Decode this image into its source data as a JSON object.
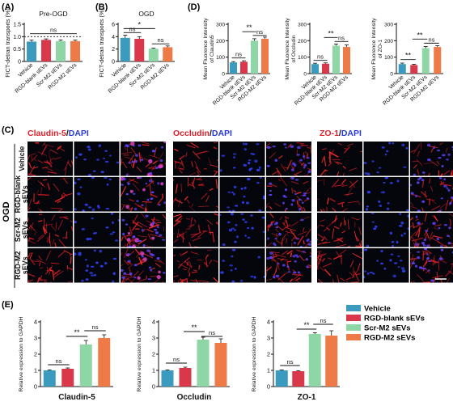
{
  "panel_labels": [
    "(A)",
    "(B)",
    "(C)",
    "(D)",
    "(E)"
  ],
  "groups": [
    "Vehicle",
    "RGD-blank sEVs",
    "Scr-M2 sEVs",
    "RGD-M2 sEVs"
  ],
  "colors": {
    "Vehicle": "#3a9bbf",
    "RGD-blank sEVs": "#d9384a",
    "Scr-M2 sEVs": "#8fd6a6",
    "RGD-M2 sEVs": "#ee7a48"
  },
  "sig": {
    "ns": "ns",
    "one": "*",
    "two": "**"
  },
  "microscopy": {
    "stains": [
      {
        "marker": "Claudin-5",
        "sep": "/",
        "dapi": "DAPI"
      },
      {
        "marker": "Occludin",
        "sep": "/",
        "dapi": "DAPI"
      },
      {
        "marker": "ZO-1",
        "sep": "/",
        "dapi": "DAPI"
      }
    ],
    "side_label": "OGD",
    "rows": [
      [
        "Vehicle"
      ],
      [
        "RGD-blank",
        "sEVs"
      ],
      [
        "Scr-M2",
        "sEVs"
      ],
      [
        "RGD-M2",
        "sEVs"
      ]
    ]
  },
  "chart_data": [
    {
      "id": "A",
      "type": "bar",
      "title": "Pre-OGD",
      "ylabel": "FICT-detran transports (%)",
      "ylim": [
        0,
        1.5
      ],
      "yticks": [
        0,
        0.5,
        1.0,
        1.5
      ],
      "tick_labels": [
        "0",
        "0.5",
        "1.0",
        "1.5"
      ],
      "categories": [
        "Vehicle",
        "RGD-blank sEVs",
        "Scr-M2 sEVs",
        "RGD-M2 sEVs"
      ],
      "values": [
        0.8,
        0.87,
        0.82,
        0.82
      ],
      "errors": [
        0.06,
        0.04,
        0.05,
        0.04
      ],
      "reference_line": 1.0,
      "annotations": [
        {
          "from": 0,
          "to": 3,
          "label": "ns",
          "y": 1.12
        }
      ]
    },
    {
      "id": "B",
      "type": "bar",
      "title": "OGD",
      "ylabel": "FICT-detran transports (%)",
      "ylim": [
        0,
        6
      ],
      "yticks": [
        0,
        2,
        4,
        6
      ],
      "tick_labels": [
        "0",
        "2",
        "4",
        "6"
      ],
      "categories": [
        "Vehicle",
        "RGD-blank sEVs",
        "Scr-M2 sEVs",
        "RGD-M2 sEVs"
      ],
      "values": [
        3.8,
        3.65,
        2.05,
        2.3
      ],
      "errors": [
        0.45,
        0.35,
        0.1,
        0.2
      ],
      "annotations": [
        {
          "from": 0,
          "to": 1,
          "label": "ns",
          "y": 4.65
        },
        {
          "from": 0,
          "to": 2,
          "label": "*",
          "y": 5.3
        },
        {
          "from": 2,
          "to": 3,
          "label": "ns",
          "y": 2.85
        }
      ]
    },
    {
      "id": "D1",
      "type": "bar",
      "title": "",
      "ylabel": "Mean Fluorence Intensity of Claudin5",
      "ylim": [
        0,
        300
      ],
      "yticks": [
        0,
        100,
        200,
        300
      ],
      "tick_labels": [
        "0",
        "100",
        "200",
        "300"
      ],
      "categories": [
        "Vehicle",
        "RGD-blank sEVs",
        "Scr-M2 sEVs",
        "RGD-M2 sEVs"
      ],
      "values": [
        68,
        72,
        200,
        212
      ],
      "errors": [
        5,
        6,
        12,
        10
      ],
      "annotations": [
        {
          "from": 0,
          "to": 1,
          "label": "ns",
          "y": 95
        },
        {
          "from": 1,
          "to": 2,
          "label": "**",
          "y": 255
        },
        {
          "from": 2,
          "to": 3,
          "label": "ns",
          "y": 232
        }
      ]
    },
    {
      "id": "D2",
      "type": "bar",
      "title": "",
      "ylabel": "Mean Fluorence Intensity of Occludin",
      "ylim": [
        0,
        300
      ],
      "yticks": [
        0,
        100,
        200,
        300
      ],
      "tick_labels": [
        "0",
        "100",
        "200",
        "300"
      ],
      "categories": [
        "Vehicle",
        "RGD-blank sEVs",
        "Scr-M2 sEVs",
        "RGD-M2 sEVs"
      ],
      "values": [
        58,
        60,
        170,
        162
      ],
      "errors": [
        5,
        5,
        10,
        12
      ],
      "annotations": [
        {
          "from": 0,
          "to": 1,
          "label": "ns",
          "y": 80
        },
        {
          "from": 1,
          "to": 2,
          "label": "**",
          "y": 220
        },
        {
          "from": 2,
          "to": 3,
          "label": "ns",
          "y": 195
        }
      ]
    },
    {
      "id": "D3",
      "type": "bar",
      "title": "",
      "ylabel": "Mean Fluorence Intensity of ZO-1",
      "ylim": [
        0,
        300
      ],
      "yticks": [
        0,
        100,
        200,
        300
      ],
      "tick_labels": [
        "0",
        "100",
        "200",
        "300"
      ],
      "categories": [
        "Vehicle",
        "RGD-blank sEVs",
        "Scr-M2 sEVs",
        "RGD-M2 sEVs"
      ],
      "values": [
        58,
        52,
        155,
        162
      ],
      "errors": [
        6,
        5,
        10,
        8
      ],
      "annotations": [
        {
          "from": 0,
          "to": 1,
          "label": "**",
          "y": 85
        },
        {
          "from": 1,
          "to": 2,
          "label": "**",
          "y": 210
        },
        {
          "from": 2,
          "to": 3,
          "label": "ns",
          "y": 185
        }
      ]
    },
    {
      "id": "E1",
      "type": "bar",
      "title": "",
      "ylabel": "Relative expression to GAPDH",
      "xlabel": "Claudin-5",
      "ylim": [
        0,
        4
      ],
      "yticks": [
        0,
        1,
        2,
        3,
        4
      ],
      "tick_labels": [
        "0",
        "1",
        "2",
        "3",
        "4"
      ],
      "categories": [
        "Vehicle",
        "RGD-blank sEVs",
        "Scr-M2 sEVs",
        "RGD-M2 sEVs"
      ],
      "values": [
        1.0,
        1.1,
        2.6,
        3.0
      ],
      "errors": [
        0.03,
        0.05,
        0.25,
        0.2
      ],
      "annotations": [
        {
          "from": 0,
          "to": 1,
          "label": "ns",
          "y": 1.35
        },
        {
          "from": 1,
          "to": 2,
          "label": "**",
          "y": 3.1
        },
        {
          "from": 2,
          "to": 3,
          "label": "ns",
          "y": 3.45
        }
      ]
    },
    {
      "id": "E2",
      "type": "bar",
      "title": "",
      "ylabel": "Relative expression to GAPDH",
      "xlabel": "Occludin",
      "ylim": [
        0,
        4
      ],
      "yticks": [
        0,
        1,
        2,
        3,
        4
      ],
      "tick_labels": [
        "0",
        "1",
        "2",
        "3",
        "4"
      ],
      "categories": [
        "Vehicle",
        "RGD-blank sEVs",
        "Scr-M2 sEVs",
        "RGD-M2 sEVs"
      ],
      "values": [
        1.0,
        1.15,
        2.9,
        2.7
      ],
      "errors": [
        0.03,
        0.05,
        0.15,
        0.25
      ],
      "annotations": [
        {
          "from": 0,
          "to": 1,
          "label": "ns",
          "y": 1.45
        },
        {
          "from": 1,
          "to": 2,
          "label": "**",
          "y": 3.4
        },
        {
          "from": 2,
          "to": 3,
          "label": "ns",
          "y": 3.1
        }
      ]
    },
    {
      "id": "E3",
      "type": "bar",
      "title": "",
      "ylabel": "Relative expression to GAPDH",
      "xlabel": "ZO-1",
      "ylim": [
        0,
        4
      ],
      "yticks": [
        0,
        1,
        2,
        3,
        4
      ],
      "tick_labels": [
        "0",
        "1",
        "2",
        "3",
        "4"
      ],
      "categories": [
        "Vehicle",
        "RGD-blank sEVs",
        "Scr-M2 sEVs",
        "RGD-M2 sEVs"
      ],
      "values": [
        1.0,
        0.95,
        3.25,
        3.15
      ],
      "errors": [
        0.03,
        0.03,
        0.08,
        0.3
      ],
      "annotations": [
        {
          "from": 0,
          "to": 1,
          "label": "ns",
          "y": 1.3
        },
        {
          "from": 1,
          "to": 2,
          "label": "**",
          "y": 3.55
        },
        {
          "from": 2,
          "to": 3,
          "label": "ns",
          "y": 3.85
        }
      ]
    }
  ]
}
